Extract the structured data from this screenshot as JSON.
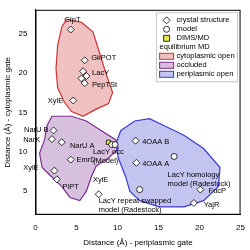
{
  "chart_data": {
    "type": "scatter",
    "x_label": "Distance (Å) - periplasmic gate",
    "y_label": "Distance (Å) - cytoplasmic gate",
    "xlim": [
      0,
      25
    ],
    "xticks": [
      0,
      5,
      10,
      15,
      20,
      25
    ],
    "ylim": [
      2,
      28
    ],
    "yticks": [
      5,
      10,
      15,
      20,
      25
    ],
    "grid": false,
    "legend": "upper right",
    "legend_heading": "equilibrium MD",
    "series": [
      {
        "name": "crystal structure",
        "type": "scatter",
        "marker": "diamond",
        "color": "#ffffff",
        "x": [
          4.3,
          6.0,
          5.8,
          6.2,
          5.6,
          6.0,
          4.6,
          2.2,
          2.0,
          3.2,
          4.3,
          2.3,
          2.6,
          7.7,
          12.2,
          12.3,
          20.1,
          19.3
        ],
        "values": [
          25.5,
          21.6,
          20.2,
          19.6,
          19.3,
          18.7,
          16.5,
          12.7,
          11.6,
          11.2,
          9.0,
          7.6,
          6.5,
          4.6,
          11.4,
          8.6,
          5.2,
          3.5
        ]
      },
      {
        "name": "model",
        "type": "scatter",
        "marker": "circle",
        "color": "#ffffff",
        "x": [
          9.3,
          9.7,
          12.7,
          16.9
        ],
        "values": [
          10.9,
          10.9,
          5.2,
          9.4
        ]
      },
      {
        "name": "DIMS/MD",
        "type": "scatter",
        "marker": "square",
        "color": "#e8e84a",
        "x": [
          8.9
        ],
        "values": [
          11.2
        ]
      },
      {
        "name": "cytoplasmic open",
        "type": "area",
        "color": "#cc3333",
        "x": [
          3.8,
          5.6,
          7.0,
          7.7,
          8.6,
          9.4,
          8.9,
          7.4,
          5.8,
          4.4,
          3.5,
          2.7,
          2.5,
          2.7,
          3.2
        ],
        "values": [
          26.8,
          26.4,
          25.2,
          22.9,
          19.9,
          17.5,
          16.1,
          15.4,
          14.5,
          15.1,
          16.3,
          18.1,
          20.5,
          23.5,
          25.8
        ]
      },
      {
        "name": "occluded",
        "type": "area",
        "color": "#7b2d8e",
        "x": [
          2.0,
          4.4,
          6.2,
          8.0,
          9.8,
          10.1,
          8.9,
          7.4,
          6.8,
          6.2,
          5.4,
          4.2,
          3.2,
          2.0,
          0.8,
          0.5,
          1.1,
          1.4
        ],
        "values": [
          14.5,
          14.5,
          13.9,
          12.7,
          11.5,
          10.4,
          9.2,
          8.2,
          6.8,
          5.0,
          3.8,
          4.2,
          5.6,
          6.8,
          8.0,
          9.8,
          11.5,
          13.3
        ]
      },
      {
        "name": "periplasmic open",
        "type": "area",
        "color": "#3a3ad0",
        "x": [
          10.4,
          12.1,
          13.9,
          15.7,
          18.1,
          20.5,
          22.5,
          22.3,
          20.5,
          18.1,
          15.1,
          12.7,
          11.5,
          11.0,
          10.1,
          9.8
        ],
        "values": [
          12.7,
          13.9,
          14.2,
          13.3,
          12.1,
          10.4,
          8.0,
          5.6,
          3.8,
          3.0,
          3.0,
          3.8,
          5.0,
          6.8,
          9.2,
          11.0
        ]
      }
    ],
    "annotations": [
      {
        "text": "GlpT",
        "x": 3.5,
        "y": 26.7
      },
      {
        "text": "GkPOT",
        "x": 6.8,
        "y": 21.9
      },
      {
        "text": "LacY",
        "x": 6.9,
        "y": 20.0
      },
      {
        "text": "PepTSt",
        "x": 6.9,
        "y": 18.5
      },
      {
        "text": "XylE",
        "x": 1.5,
        "y": 16.4
      },
      {
        "text": "NarU B",
        "x": -1.4,
        "y": 12.7
      },
      {
        "text": "NarK",
        "x": -1.5,
        "y": 11.5
      },
      {
        "text": "NarU A",
        "x": 4.2,
        "y": 10.7
      },
      {
        "text": "EmrD",
        "x": 5.0,
        "y": 8.9
      },
      {
        "text": "XylE",
        "x": -1.5,
        "y": 7.9
      },
      {
        "text": "PiPT",
        "x": 3.3,
        "y": 5.5
      },
      {
        "text": "XylE",
        "x": 7.0,
        "y": 6.4
      },
      {
        "text": "LacY occ\n(Model)",
        "x": 7.0,
        "y": 10.0
      },
      {
        "text": "4OAA B",
        "x": 13.0,
        "y": 11.3
      },
      {
        "text": "4OAA A",
        "x": 13.0,
        "y": 8.5
      },
      {
        "text": "LacY homology\nmodel (Radestock)",
        "x": 16.1,
        "y": 7.1
      },
      {
        "text": "LacY repeat swapped\nmodel (Radestock)",
        "x": 7.7,
        "y": 3.7
      },
      {
        "text": "FucP",
        "x": 21.1,
        "y": 5.0
      },
      {
        "text": "YajR",
        "x": 20.5,
        "y": 3.2
      }
    ]
  }
}
